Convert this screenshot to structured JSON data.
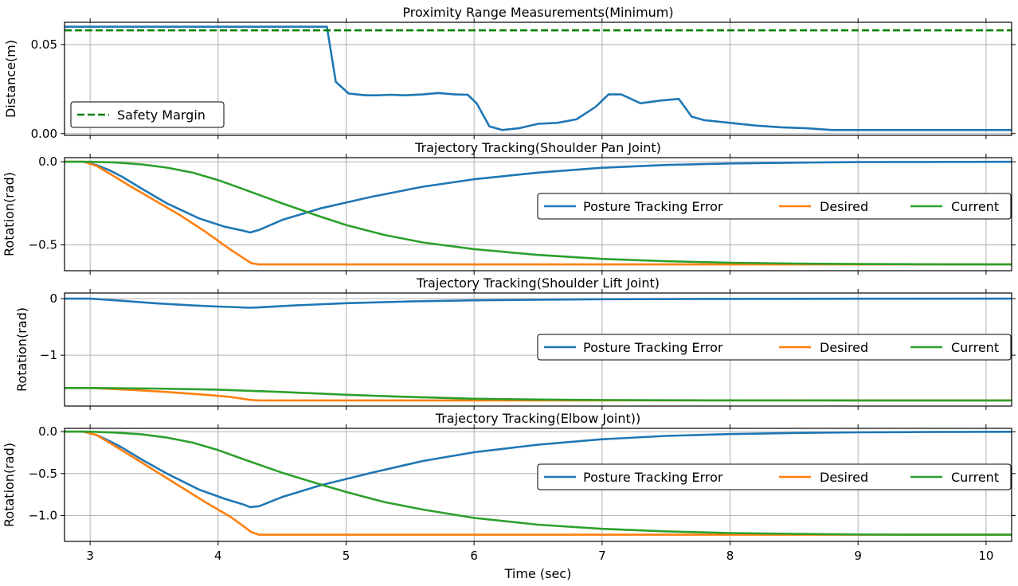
{
  "colors": {
    "posture_error": "#1f77b4",
    "desired": "#ff7f0e",
    "current": "#2ca02c",
    "safety_margin": "#008000"
  },
  "chart_data": [
    {
      "type": "line",
      "title": "Proximity Range Measurements(Minimum)",
      "xlabel": "",
      "ylabel": "Distance(m)",
      "xlim": [
        2.8,
        10.2
      ],
      "ylim": [
        -0.001,
        0.0625
      ],
      "grid": true,
      "legend_position": "bottom-left",
      "xticks": [
        3,
        4,
        5,
        6,
        7,
        8,
        9,
        10
      ],
      "yticks": [
        0.0,
        0.05
      ],
      "ytick_labels": [
        "0.00",
        "0.05"
      ],
      "series": [
        {
          "name": "",
          "color_key": "posture_error",
          "dashed": false,
          "x": [
            2.8,
            4.85,
            4.92,
            5.02,
            5.15,
            5.25,
            5.35,
            5.45,
            5.6,
            5.72,
            5.85,
            5.95,
            6.02,
            6.12,
            6.22,
            6.35,
            6.5,
            6.65,
            6.8,
            6.95,
            7.05,
            7.15,
            7.3,
            7.45,
            7.6,
            7.7,
            7.8,
            8.0,
            8.2,
            8.4,
            8.6,
            8.8,
            9.0,
            10.2
          ],
          "y": [
            0.06,
            0.06,
            0.029,
            0.0225,
            0.0215,
            0.0215,
            0.0218,
            0.0215,
            0.022,
            0.0228,
            0.022,
            0.0218,
            0.017,
            0.004,
            0.002,
            0.003,
            0.0055,
            0.006,
            0.008,
            0.015,
            0.022,
            0.022,
            0.017,
            0.0185,
            0.0195,
            0.0095,
            0.0075,
            0.006,
            0.0045,
            0.0035,
            0.003,
            0.002,
            0.002,
            0.002
          ]
        },
        {
          "name": "Safety Margin",
          "color_key": "safety_margin",
          "dashed": true,
          "x": [
            2.8,
            10.2
          ],
          "y": [
            0.058,
            0.058
          ]
        }
      ]
    },
    {
      "type": "line",
      "title": "Trajectory Tracking(Shoulder Pan Joint)",
      "xlabel": "",
      "ylabel": "Rotation(rad)",
      "xlim": [
        2.8,
        10.2
      ],
      "ylim": [
        -0.655,
        0.025
      ],
      "grid": true,
      "legend_position": "center-right",
      "xticks": [
        3,
        4,
        5,
        6,
        7,
        8,
        9,
        10
      ],
      "yticks": [
        0.0,
        -0.5
      ],
      "ytick_labels": [
        "0.0",
        "−0.5"
      ],
      "series": [
        {
          "name": "Posture Tracking Error",
          "color_key": "posture_error",
          "dashed": false,
          "x": [
            2.8,
            2.95,
            3.05,
            3.15,
            3.25,
            3.4,
            3.6,
            3.85,
            4.05,
            4.2,
            4.25,
            4.32,
            4.5,
            4.8,
            5.2,
            5.6,
            6.0,
            6.5,
            7.0,
            7.5,
            8.0,
            8.5,
            9.0,
            9.5,
            10.2
          ],
          "y": [
            0.0,
            0.0,
            -0.02,
            -0.05,
            -0.09,
            -0.16,
            -0.25,
            -0.34,
            -0.39,
            -0.415,
            -0.425,
            -0.41,
            -0.35,
            -0.28,
            -0.21,
            -0.15,
            -0.105,
            -0.065,
            -0.036,
            -0.019,
            -0.01,
            -0.005,
            -0.002,
            -0.001,
            0.0
          ]
        },
        {
          "name": "Desired",
          "color_key": "desired",
          "dashed": false,
          "x": [
            2.8,
            2.95,
            3.05,
            3.15,
            3.3,
            3.5,
            3.7,
            3.9,
            4.1,
            4.2,
            4.26,
            4.32,
            10.2
          ],
          "y": [
            0.0,
            0.0,
            -0.025,
            -0.07,
            -0.14,
            -0.23,
            -0.32,
            -0.42,
            -0.53,
            -0.58,
            -0.61,
            -0.617,
            -0.617
          ]
        },
        {
          "name": "Current",
          "color_key": "current",
          "dashed": false,
          "x": [
            2.8,
            3.0,
            3.2,
            3.4,
            3.6,
            3.8,
            4.0,
            4.2,
            4.5,
            4.8,
            5.0,
            5.3,
            5.6,
            6.0,
            6.5,
            7.0,
            7.5,
            8.0,
            8.5,
            9.0,
            9.5,
            10.2
          ],
          "y": [
            0.0,
            0.0,
            -0.004,
            -0.015,
            -0.035,
            -0.065,
            -0.11,
            -0.165,
            -0.25,
            -0.33,
            -0.38,
            -0.44,
            -0.485,
            -0.525,
            -0.56,
            -0.584,
            -0.598,
            -0.607,
            -0.612,
            -0.615,
            -0.616,
            -0.617
          ]
        }
      ]
    },
    {
      "type": "line",
      "title": "Trajectory Tracking(Shoulder Lift Joint)",
      "xlabel": "",
      "ylabel": "Rotation(rad)",
      "xlim": [
        2.8,
        10.2
      ],
      "ylim": [
        -1.9,
        0.1
      ],
      "grid": true,
      "legend_position": "center-right",
      "xticks": [
        3,
        4,
        5,
        6,
        7,
        8,
        9,
        10
      ],
      "yticks": [
        0,
        -1
      ],
      "ytick_labels": [
        "0",
        "−1"
      ],
      "series": [
        {
          "name": "Posture Tracking Error",
          "color_key": "posture_error",
          "dashed": false,
          "x": [
            2.8,
            3.0,
            3.2,
            3.5,
            3.8,
            4.0,
            4.25,
            4.32,
            4.6,
            5.0,
            5.5,
            6.0,
            6.5,
            7.0,
            8.0,
            9.0,
            10.2
          ],
          "y": [
            0.0,
            0.0,
            -0.03,
            -0.08,
            -0.12,
            -0.14,
            -0.16,
            -0.155,
            -0.12,
            -0.08,
            -0.05,
            -0.03,
            -0.018,
            -0.01,
            -0.004,
            -0.001,
            0.0
          ]
        },
        {
          "name": "Desired",
          "color_key": "desired",
          "dashed": false,
          "x": [
            2.8,
            3.0,
            3.3,
            3.6,
            3.9,
            4.1,
            4.25,
            4.32,
            10.2
          ],
          "y": [
            -1.58,
            -1.58,
            -1.61,
            -1.65,
            -1.7,
            -1.74,
            -1.79,
            -1.8,
            -1.8
          ]
        },
        {
          "name": "Current",
          "color_key": "current",
          "dashed": false,
          "x": [
            2.8,
            3.0,
            3.5,
            4.0,
            4.5,
            5.0,
            5.5,
            6.0,
            6.5,
            7.0,
            7.5,
            8.0,
            9.0,
            10.2
          ],
          "y": [
            -1.58,
            -1.58,
            -1.59,
            -1.61,
            -1.65,
            -1.7,
            -1.74,
            -1.77,
            -1.785,
            -1.793,
            -1.797,
            -1.799,
            -1.8,
            -1.8
          ]
        }
      ]
    },
    {
      "type": "line",
      "title": "Trajectory Tracking(Elbow Joint))",
      "xlabel": "Time (sec)",
      "ylabel": "Rotation(rad)",
      "xlim": [
        2.8,
        10.2
      ],
      "ylim": [
        -1.31,
        0.04
      ],
      "grid": true,
      "legend_position": "center-right",
      "xticks": [
        3,
        4,
        5,
        6,
        7,
        8,
        9,
        10
      ],
      "yticks": [
        0.0,
        -0.5,
        -1.0
      ],
      "ytick_labels": [
        "0.0",
        "−0.5",
        "−1.0"
      ],
      "series": [
        {
          "name": "Posture Tracking Error",
          "color_key": "posture_error",
          "dashed": false,
          "x": [
            2.8,
            2.95,
            3.05,
            3.15,
            3.25,
            3.4,
            3.6,
            3.85,
            4.05,
            4.2,
            4.25,
            4.32,
            4.5,
            4.8,
            5.2,
            5.6,
            6.0,
            6.5,
            7.0,
            7.5,
            8.0,
            8.5,
            9.0,
            9.5,
            10.2
          ],
          "y": [
            0.0,
            0.0,
            -0.04,
            -0.11,
            -0.19,
            -0.33,
            -0.5,
            -0.69,
            -0.8,
            -0.87,
            -0.9,
            -0.89,
            -0.78,
            -0.64,
            -0.49,
            -0.35,
            -0.245,
            -0.155,
            -0.09,
            -0.05,
            -0.028,
            -0.015,
            -0.008,
            -0.004,
            -0.001
          ]
        },
        {
          "name": "Desired",
          "color_key": "desired",
          "dashed": false,
          "x": [
            2.8,
            2.95,
            3.05,
            3.15,
            3.3,
            3.5,
            3.7,
            3.9,
            4.1,
            4.2,
            4.26,
            4.32,
            10.2
          ],
          "y": [
            0.0,
            0.0,
            -0.04,
            -0.13,
            -0.27,
            -0.46,
            -0.65,
            -0.84,
            -1.02,
            -1.13,
            -1.2,
            -1.23,
            -1.23
          ]
        },
        {
          "name": "Current",
          "color_key": "current",
          "dashed": false,
          "x": [
            2.8,
            3.0,
            3.2,
            3.4,
            3.6,
            3.8,
            4.0,
            4.2,
            4.5,
            4.8,
            5.0,
            5.3,
            5.6,
            6.0,
            6.5,
            7.0,
            7.5,
            8.0,
            8.5,
            9.0,
            9.5,
            10.2
          ],
          "y": [
            0.0,
            0.0,
            -0.01,
            -0.03,
            -0.07,
            -0.13,
            -0.22,
            -0.33,
            -0.49,
            -0.63,
            -0.72,
            -0.84,
            -0.93,
            -1.03,
            -1.11,
            -1.16,
            -1.19,
            -1.21,
            -1.22,
            -1.227,
            -1.23,
            -1.23
          ]
        }
      ]
    }
  ]
}
